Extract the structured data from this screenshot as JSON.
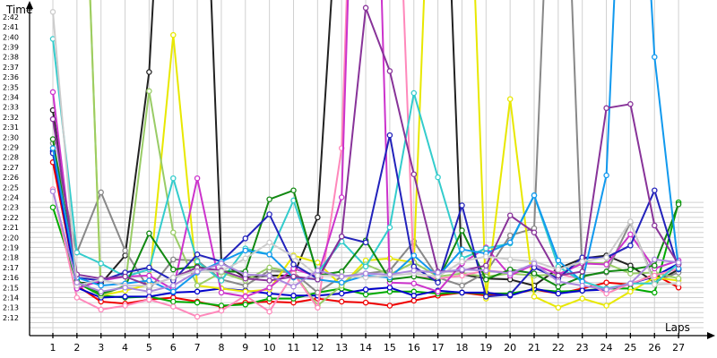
{
  "chart_data": {
    "type": "line",
    "ylabel": "Time",
    "xlabel": "Laps",
    "x": [
      1,
      2,
      3,
      4,
      5,
      6,
      7,
      8,
      9,
      10,
      11,
      12,
      13,
      14,
      15,
      16,
      17,
      18,
      19,
      20,
      21,
      22,
      23,
      24,
      25,
      26,
      27
    ],
    "ytick_labels": [
      "2:12",
      "2:13",
      "2:14",
      "2:15",
      "2:16",
      "2:17",
      "2:18",
      "2:19",
      "2:20",
      "2:21",
      "2:22",
      "2:23",
      "2:24",
      "2:25",
      "2:26",
      "2:27",
      "2:28",
      "2:29",
      "2:30",
      "2:31",
      "2:32",
      "2:33",
      "2:34",
      "2:35",
      "2:36",
      "2:37",
      "2:38",
      "2:39",
      "2:40",
      "2:41",
      "2:42"
    ],
    "ylim_seconds": [
      131,
      143.5
    ],
    "y_unit": "seconds",
    "grid": true,
    "series": [
      {
        "color": "#ee0000",
        "values": [
          147.5,
          135.2,
          133.6,
          133.4,
          133.8,
          134.0,
          133.6,
          133.1,
          133.5,
          133.6,
          133.5,
          133.9,
          133.6,
          133.5,
          133.2,
          133.7,
          134.2,
          134.5,
          134.2,
          134.3,
          134.8,
          134.4,
          134.9,
          135.5,
          135.3,
          136.3,
          135.0
        ]
      },
      {
        "color": "#00aa00",
        "values": [
          143.0,
          135.5,
          134.2,
          134.0,
          134.1,
          133.6,
          133.5,
          133.2,
          133.3,
          133.9,
          133.9,
          134.5,
          134.9,
          134.3,
          134.6,
          134.6,
          134.4,
          134.5,
          134.4,
          134.4,
          134.8,
          134.6,
          134.7,
          134.9,
          134.9,
          134.5,
          143.5
        ]
      },
      {
        "color": "#0000cc",
        "values": [
          148.6,
          135.0,
          134.0,
          134.1,
          134.1,
          134.5,
          134.6,
          134.9,
          134.7,
          134.4,
          134.2,
          134.2,
          134.4,
          134.8,
          135.0,
          134.2,
          134.7,
          134.5,
          134.5,
          134.2,
          134.9,
          134.4,
          134.7,
          134.8,
          135.4,
          136.1,
          137.4
        ]
      },
      {
        "color": "#222222",
        "values": [
          152.7,
          135.5,
          135.4,
          138.2,
          156.5,
          200.0,
          200.0,
          137.5,
          136.0,
          136.2,
          136.2,
          142.0,
          180.0,
          220.0,
          200.0,
          200.0,
          200.0,
          136.3,
          135.9,
          135.8,
          135.2,
          136.9,
          137.9,
          138.2,
          137.2,
          135.5,
          136.8
        ]
      },
      {
        "color": "#888888",
        "values": [
          149.4,
          138.5,
          144.5,
          138.7,
          134.8,
          137.8,
          137.7,
          135.8,
          135.2,
          136.7,
          136.5,
          134.5,
          136.1,
          136.4,
          136.7,
          139.6,
          136.0,
          135.2,
          136.5,
          140.2,
          140.9,
          200.0,
          136.2,
          136.5,
          141.5,
          135.6,
          136.5
        ]
      },
      {
        "color": "#e8e800",
        "values": [
          200.0,
          200.0,
          134.2,
          134.7,
          135.3,
          160.2,
          135.2,
          134.9,
          134.6,
          134.8,
          138.2,
          137.5,
          135.2,
          137.7,
          137.9,
          137.5,
          200.0,
          200.0,
          133.9,
          153.8,
          134.1,
          133.0,
          133.9,
          133.2,
          134.6,
          136.0,
          135.7
        ]
      },
      {
        "color": "#99cc66",
        "values": [
          164.4,
          200.0,
          134.2,
          135.2,
          154.6,
          140.5,
          135.2,
          136.5,
          135.7,
          137.0,
          136.5,
          133.2,
          135.2,
          137.3,
          136.3,
          137.5,
          136.1,
          136.4,
          136.1,
          136.4,
          136.2,
          136.3,
          137.5,
          137.4,
          136.4,
          136.5,
          135.9
        ]
      },
      {
        "color": "#ff88bb",
        "values": [
          144.8,
          134.0,
          132.8,
          133.2,
          133.8,
          133.1,
          132.1,
          132.7,
          134.2,
          132.6,
          136.4,
          133.0,
          148.9,
          220.0,
          200.0,
          136.1,
          135.9,
          136.2,
          136.7,
          136.5,
          137.2,
          136.4,
          135.8,
          134.4,
          135.4,
          136.2,
          136.9
        ]
      },
      {
        "color": "#cc33cc",
        "values": [
          154.5,
          134.9,
          135.7,
          136.1,
          136.2,
          134.8,
          145.9,
          134.5,
          134.1,
          135.0,
          136.9,
          136.1,
          144.0,
          220.0,
          135.5,
          135.4,
          134.6,
          137.4,
          139.0,
          136.2,
          137.3,
          136.3,
          137.4,
          137.3,
          140.3,
          136.9,
          137.7
        ]
      },
      {
        "color": "#33cccc",
        "values": [
          159.8,
          138.5,
          137.4,
          136.1,
          136.8,
          145.9,
          137.6,
          135.7,
          138.9,
          138.3,
          143.7,
          136.5,
          139.6,
          137.1,
          141.0,
          154.4,
          146.0,
          137.9,
          138.9,
          139.4,
          144.2,
          137.1,
          135.6,
          134.9,
          135.4,
          135.4,
          137.4
        ]
      },
      {
        "color": "#118811",
        "values": [
          149.8,
          135.7,
          134.4,
          135.1,
          140.4,
          136.8,
          137.1,
          136.6,
          136.6,
          143.8,
          144.7,
          136.2,
          136.6,
          139.7,
          135.8,
          136.1,
          135.7,
          140.7,
          135.8,
          136.8,
          136.4,
          135.1,
          136.1,
          136.6,
          136.8,
          137.2,
          143.3
        ]
      },
      {
        "color": "#2222bb",
        "values": [
          148.4,
          136.0,
          135.7,
          136.5,
          137.0,
          135.7,
          138.3,
          137.6,
          139.9,
          142.3,
          137.3,
          135.9,
          140.1,
          139.5,
          150.2,
          137.1,
          135.5,
          143.2,
          134.1,
          134.3,
          137.0,
          135.9,
          138.0,
          138.0,
          139.2,
          144.7,
          136.8
        ]
      },
      {
        "color": "#1199ee",
        "values": [
          148.9,
          136.0,
          135.2,
          135.4,
          135.7,
          134.6,
          136.5,
          137.6,
          138.7,
          138.3,
          136.0,
          135.8,
          135.5,
          136.2,
          136.0,
          138.2,
          136.1,
          138.8,
          138.4,
          139.5,
          144.2,
          137.7,
          135.6,
          146.2,
          200.0,
          158.0,
          136.9
        ]
      },
      {
        "color": "#883399",
        "values": [
          151.8,
          136.3,
          135.9,
          136.1,
          135.2,
          136.0,
          137.0,
          136.7,
          135.9,
          135.7,
          136.1,
          135.8,
          140.1,
          162.9,
          156.6,
          146.3,
          136.6,
          136.7,
          137.2,
          142.2,
          140.5,
          136.2,
          136.6,
          152.9,
          153.3,
          141.2,
          137.3
        ]
      },
      {
        "color": "#cccccc",
        "values": [
          162.5,
          135.2,
          135.8,
          135.2,
          135.2,
          136.0,
          136.7,
          136.6,
          137.9,
          139.5,
          138.1,
          136.2,
          136.2,
          136.0,
          136.2,
          136.4,
          136.1,
          137.6,
          138.1,
          137.8,
          137.6,
          136.8,
          137.6,
          138.0,
          141.6,
          135.3,
          135.4
        ]
      },
      {
        "color": "#aa88dd",
        "values": [
          144.6,
          135.5,
          134.6,
          135.0,
          134.6,
          135.2,
          136.6,
          137.4,
          136.3,
          136.2,
          135.1,
          136.7,
          136.1,
          136.4,
          136.3,
          136.7,
          136.5,
          136.8,
          136.7,
          136.4,
          137.4,
          135.6,
          135.2,
          134.8,
          135.4,
          137.8,
          137.5
        ]
      }
    ]
  }
}
